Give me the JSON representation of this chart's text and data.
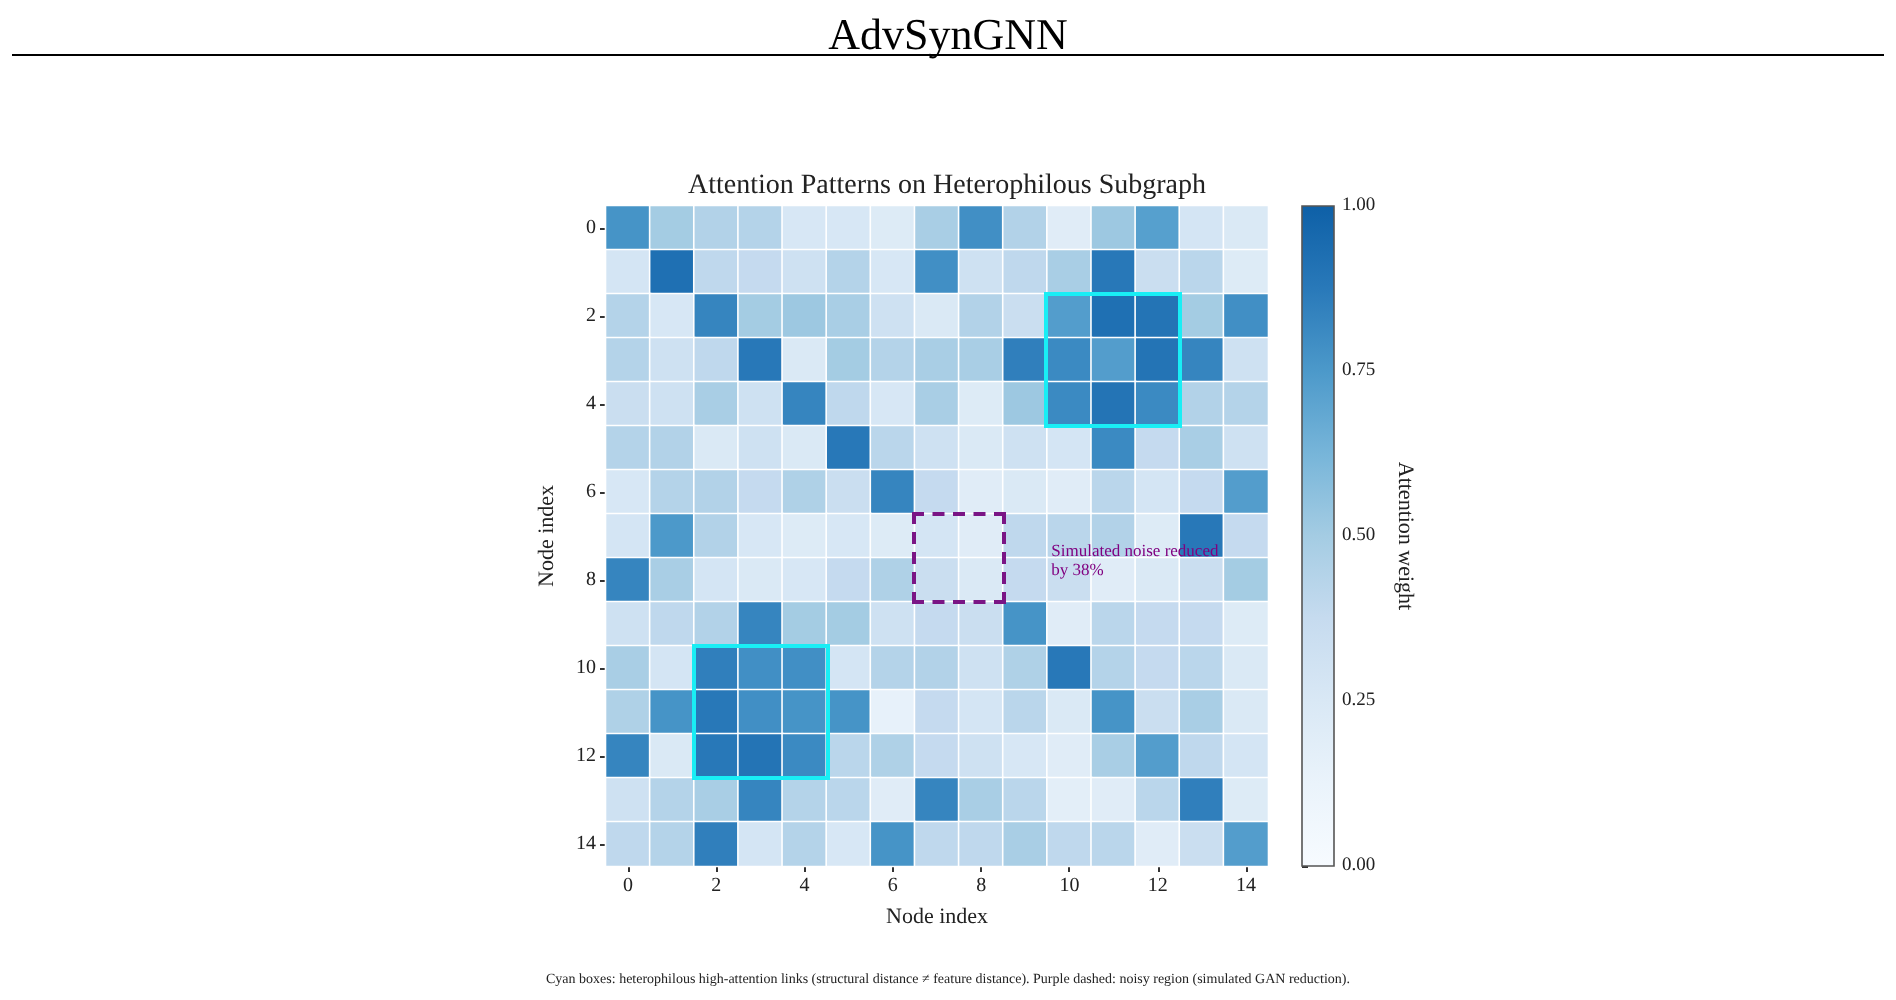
{
  "chart_data": {
    "type": "heatmap",
    "title": "AdvSynGNN",
    "subtitle": "Attention Patterns on Heterophilous Subgraph",
    "xlabel": "Node index",
    "ylabel": "Node index",
    "clabel": "Attention weight",
    "categories": [
      "0",
      null,
      "2",
      null,
      "4",
      null,
      "6",
      null,
      "8",
      null,
      "10",
      null,
      "12",
      null,
      "14"
    ],
    "y_categories": [
      "0",
      null,
      "2",
      null,
      "4",
      null,
      "6",
      null,
      "8",
      null,
      "10",
      null,
      "12",
      null,
      "14"
    ],
    "cells": [
      [
        0.77,
        0.5,
        0.45,
        0.44,
        0.26,
        0.26,
        0.22,
        0.48,
        0.79,
        0.45,
        0.2,
        0.52,
        0.72,
        0.28,
        0.24
      ],
      [
        0.28,
        0.92,
        0.4,
        0.38,
        0.32,
        0.44,
        0.26,
        0.79,
        0.32,
        0.4,
        0.48,
        0.88,
        0.35,
        0.42,
        0.22
      ],
      [
        0.44,
        0.26,
        0.83,
        0.5,
        0.52,
        0.48,
        0.32,
        0.24,
        0.45,
        0.35,
        0.73,
        0.92,
        0.9,
        0.5,
        0.79
      ],
      [
        0.44,
        0.32,
        0.4,
        0.88,
        0.24,
        0.5,
        0.44,
        0.48,
        0.48,
        0.85,
        0.81,
        0.73,
        0.9,
        0.83,
        0.32
      ],
      [
        0.35,
        0.32,
        0.48,
        0.32,
        0.83,
        0.4,
        0.26,
        0.48,
        0.22,
        0.52,
        0.81,
        0.9,
        0.81,
        0.45,
        0.44
      ],
      [
        0.44,
        0.45,
        0.24,
        0.32,
        0.24,
        0.88,
        0.42,
        0.32,
        0.24,
        0.32,
        0.28,
        0.81,
        0.38,
        0.48,
        0.32
      ],
      [
        0.26,
        0.44,
        0.45,
        0.38,
        0.46,
        0.35,
        0.83,
        0.38,
        0.2,
        0.24,
        0.2,
        0.42,
        0.28,
        0.38,
        0.73
      ],
      [
        0.28,
        0.75,
        0.45,
        0.26,
        0.22,
        0.26,
        0.22,
        0.28,
        0.2,
        0.4,
        0.42,
        0.45,
        0.22,
        0.88,
        0.38
      ],
      [
        0.83,
        0.48,
        0.28,
        0.24,
        0.26,
        0.38,
        0.46,
        0.35,
        0.24,
        0.38,
        0.35,
        0.2,
        0.24,
        0.35,
        0.5
      ],
      [
        0.32,
        0.4,
        0.45,
        0.83,
        0.5,
        0.5,
        0.32,
        0.38,
        0.35,
        0.77,
        0.2,
        0.42,
        0.38,
        0.38,
        0.22
      ],
      [
        0.48,
        0.28,
        0.85,
        0.79,
        0.79,
        0.28,
        0.44,
        0.45,
        0.32,
        0.46,
        0.88,
        0.44,
        0.38,
        0.42,
        0.24
      ],
      [
        0.46,
        0.77,
        0.88,
        0.79,
        0.77,
        0.77,
        0.15,
        0.38,
        0.28,
        0.42,
        0.24,
        0.77,
        0.35,
        0.48,
        0.24
      ],
      [
        0.83,
        0.24,
        0.88,
        0.9,
        0.81,
        0.42,
        0.46,
        0.38,
        0.32,
        0.26,
        0.2,
        0.48,
        0.73,
        0.4,
        0.28
      ],
      [
        0.32,
        0.44,
        0.48,
        0.83,
        0.44,
        0.42,
        0.2,
        0.83,
        0.48,
        0.42,
        0.18,
        0.2,
        0.42,
        0.85,
        0.22
      ],
      [
        0.4,
        0.44,
        0.85,
        0.28,
        0.44,
        0.26,
        0.77,
        0.4,
        0.4,
        0.48,
        0.4,
        0.42,
        0.2,
        0.35,
        0.73
      ]
    ],
    "clim": [
      0,
      1
    ],
    "cticks": [
      {
        "value": 0,
        "label": "0.00"
      },
      {
        "value": 0.25,
        "label": "0.25"
      },
      {
        "value": 0.5,
        "label": "0.50"
      },
      {
        "value": 0.75,
        "label": "0.75"
      },
      {
        "value": 1,
        "label": "1.00"
      }
    ],
    "annotations": [
      "Simulated noise reduced by 38%",
      "Cyan boxes: heterophilous high-attention links (structural distance ≠ feature distance). Purple dashed: noisy region (simulated GAN reduction)."
    ]
  }
}
